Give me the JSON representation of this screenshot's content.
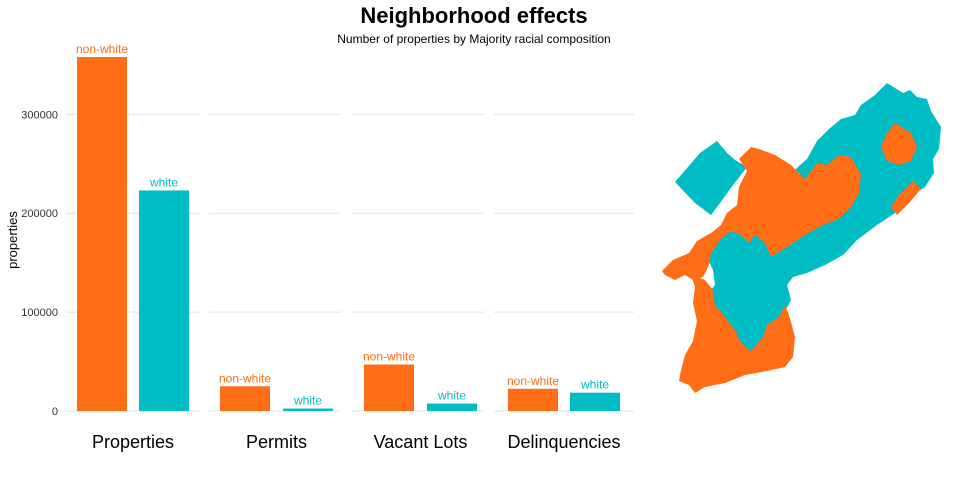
{
  "title": "Neighborhood effects",
  "subtitle": "Number of properties by Majority racial composition",
  "colors": {
    "non-white": "#ff6d16",
    "white": "#00bcc4",
    "grid": "#e4e4e4"
  },
  "chart_data": {
    "type": "bar",
    "title": "Neighborhood effects",
    "subtitle": "Number of properties by Majority racial composition",
    "ylabel": "properties",
    "xlabel": "",
    "ylim": [
      0,
      360000
    ],
    "yticks": [
      0,
      100000,
      200000,
      300000
    ],
    "ytick_labels": [
      "0",
      "100000",
      "200000",
      "300000"
    ],
    "grid": true,
    "legend": "none",
    "categories": [
      "Properties",
      "Permits",
      "Vacant Lots",
      "Delinquencies"
    ],
    "series": [
      {
        "name": "non-white",
        "values": [
          358000,
          25000,
          47000,
          22500
        ]
      },
      {
        "name": "white",
        "values": [
          223000,
          2500,
          7500,
          18500
        ]
      }
    ]
  },
  "map": {
    "legend": "none",
    "regions": [
      {
        "group": "white",
        "icon": "map-region"
      },
      {
        "group": "non-white",
        "icon": "map-region"
      }
    ]
  }
}
